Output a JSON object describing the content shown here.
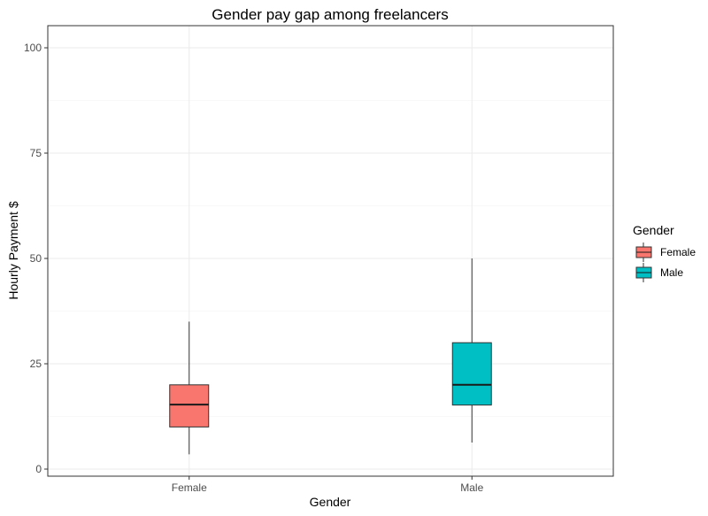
{
  "chart_data": {
    "type": "box",
    "title": "Gender pay gap among freelancers",
    "xlabel": "Gender",
    "ylabel": "Hourly Payment $",
    "categories": [
      "Female",
      "Male"
    ],
    "y_ticks": [
      "0",
      "25",
      "50",
      "75",
      "100"
    ],
    "ylim": [
      0,
      100
    ],
    "grid": true,
    "legend": {
      "title": "Gender",
      "position": "right",
      "entries": [
        {
          "label": "Female",
          "color": "#F8766D"
        },
        {
          "label": "Male",
          "color": "#00BFC4"
        }
      ]
    },
    "boxes": [
      {
        "category": "Female",
        "color": "#F8766D",
        "whisker_low": 3.5,
        "q1": 10,
        "median": 15.3,
        "q3": 20,
        "whisker_high": 35
      },
      {
        "category": "Male",
        "color": "#00BFC4",
        "whisker_low": 6.3,
        "q1": 15.2,
        "median": 20,
        "q3": 30,
        "whisker_high": 50
      }
    ]
  }
}
